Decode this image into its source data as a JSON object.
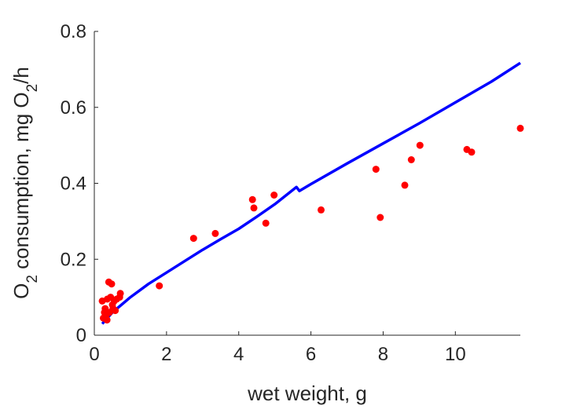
{
  "chart_data": {
    "type": "scatter",
    "title": "",
    "xlabel": "wet weight, g",
    "ylabel": {
      "parts": [
        {
          "text": "O",
          "sub": false
        },
        {
          "text": "2",
          "sub": true
        },
        {
          "text": " consumption, mg O",
          "sub": false
        },
        {
          "text": "2",
          "sub": true
        },
        {
          "text": "/h",
          "sub": false
        }
      ]
    },
    "xlim": [
      0,
      11.8
    ],
    "ylim": [
      0,
      0.8
    ],
    "xticks": [
      0,
      2,
      4,
      6,
      8,
      10
    ],
    "yticks": [
      0,
      0.2,
      0.4,
      0.6,
      0.8
    ],
    "xtick_labels": [
      "0",
      "2",
      "4",
      "6",
      "8",
      "10"
    ],
    "ytick_labels": [
      "0",
      "0.2",
      "0.4",
      "0.6",
      "0.8"
    ],
    "grid": false,
    "series": [
      {
        "type": "scatter",
        "color": "#ff0000",
        "points": [
          [
            0.22,
            0.09
          ],
          [
            0.25,
            0.045
          ],
          [
            0.28,
            0.06
          ],
          [
            0.3,
            0.07
          ],
          [
            0.32,
            0.05
          ],
          [
            0.35,
            0.04
          ],
          [
            0.36,
            0.095
          ],
          [
            0.4,
            0.14
          ],
          [
            0.42,
            0.06
          ],
          [
            0.45,
            0.1
          ],
          [
            0.48,
            0.135
          ],
          [
            0.5,
            0.08
          ],
          [
            0.52,
            0.07
          ],
          [
            0.55,
            0.09
          ],
          [
            0.58,
            0.065
          ],
          [
            0.62,
            0.095
          ],
          [
            0.7,
            0.1
          ],
          [
            0.72,
            0.11
          ],
          [
            1.8,
            0.13
          ],
          [
            2.75,
            0.255
          ],
          [
            3.35,
            0.268
          ],
          [
            4.38,
            0.357
          ],
          [
            4.42,
            0.335
          ],
          [
            4.75,
            0.295
          ],
          [
            4.98,
            0.369
          ],
          [
            6.28,
            0.33
          ],
          [
            7.8,
            0.437
          ],
          [
            7.92,
            0.31
          ],
          [
            8.6,
            0.395
          ],
          [
            8.78,
            0.462
          ],
          [
            9.02,
            0.5
          ],
          [
            10.32,
            0.489
          ],
          [
            10.45,
            0.482
          ],
          [
            11.8,
            0.545
          ]
        ]
      },
      {
        "type": "line",
        "color": "#0000ff",
        "points": [
          [
            0.22,
            0.03
          ],
          [
            0.5,
            0.06
          ],
          [
            1.0,
            0.1
          ],
          [
            1.5,
            0.135
          ],
          [
            2.0,
            0.165
          ],
          [
            2.5,
            0.195
          ],
          [
            3.0,
            0.225
          ],
          [
            3.5,
            0.253
          ],
          [
            4.0,
            0.28
          ],
          [
            4.5,
            0.312
          ],
          [
            5.0,
            0.345
          ],
          [
            5.6,
            0.39
          ],
          [
            5.68,
            0.38
          ],
          [
            6.0,
            0.398
          ],
          [
            7.0,
            0.452
          ],
          [
            8.0,
            0.505
          ],
          [
            9.0,
            0.558
          ],
          [
            10.0,
            0.613
          ],
          [
            11.0,
            0.668
          ],
          [
            11.8,
            0.717
          ]
        ]
      }
    ]
  }
}
